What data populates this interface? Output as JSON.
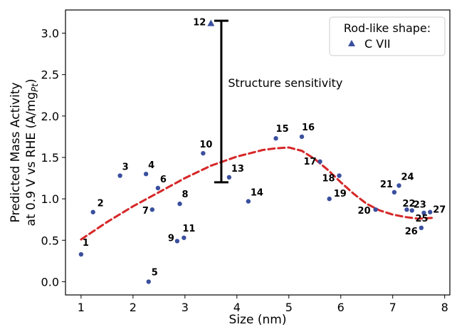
{
  "chart_data": {
    "type": "scatter",
    "xlabel": "Size (nm)",
    "ylabel_line1": "Predicted Mass Activity",
    "ylabel_line2_prefix": "at 0.9 V vs RHE (A/mg",
    "ylabel_line2_sub": "Pt",
    "ylabel_line2_suffix": ")",
    "xlim": [
      0.7,
      8.1
    ],
    "ylim": [
      -0.16,
      3.28
    ],
    "xticks": [
      1,
      2,
      3,
      4,
      5,
      6,
      7,
      8
    ],
    "yticks": [
      0.0,
      0.5,
      1.0,
      1.5,
      2.0,
      2.5,
      3.0
    ],
    "ytick_labels": [
      "0.0",
      "0.5",
      "1.0",
      "1.5",
      "2.0",
      "2.5",
      "3.0"
    ],
    "points": [
      {
        "label": "1",
        "x": 1.0,
        "y": 0.33
      },
      {
        "label": "2",
        "x": 1.23,
        "y": 0.84
      },
      {
        "label": "3",
        "x": 1.75,
        "y": 1.28
      },
      {
        "label": "4",
        "x": 2.25,
        "y": 1.3
      },
      {
        "label": "5",
        "x": 2.3,
        "y": 0.0
      },
      {
        "label": "6",
        "x": 2.48,
        "y": 1.13
      },
      {
        "label": "7",
        "x": 2.37,
        "y": 0.87
      },
      {
        "label": "8",
        "x": 2.9,
        "y": 0.94
      },
      {
        "label": "9",
        "x": 2.85,
        "y": 0.49
      },
      {
        "label": "10",
        "x": 3.35,
        "y": 1.55
      },
      {
        "label": "11",
        "x": 2.98,
        "y": 0.53
      },
      {
        "label": "13",
        "x": 3.85,
        "y": 1.26
      },
      {
        "label": "14",
        "x": 4.22,
        "y": 0.97
      },
      {
        "label": "15",
        "x": 4.75,
        "y": 1.73
      },
      {
        "label": "16",
        "x": 5.25,
        "y": 1.75
      },
      {
        "label": "17",
        "x": 5.6,
        "y": 1.45
      },
      {
        "label": "18",
        "x": 5.97,
        "y": 1.28
      },
      {
        "label": "19",
        "x": 5.78,
        "y": 1.0
      },
      {
        "label": "20",
        "x": 6.67,
        "y": 0.87
      },
      {
        "label": "21",
        "x": 7.03,
        "y": 1.08
      },
      {
        "label": "24",
        "x": 7.12,
        "y": 1.16
      },
      {
        "label": "22",
        "x": 7.27,
        "y": 0.87
      },
      {
        "label": "23",
        "x": 7.37,
        "y": 0.86
      },
      {
        "label": "25",
        "x": 7.6,
        "y": 0.83
      },
      {
        "label": "26",
        "x": 7.55,
        "y": 0.65
      },
      {
        "label": "27",
        "x": 7.72,
        "y": 0.84
      }
    ],
    "special_point": {
      "label": "12",
      "x": 3.5,
      "y": 3.12
    },
    "trend_line": {
      "x": [
        1.0,
        1.5,
        2.0,
        2.5,
        3.0,
        3.5,
        4.0,
        4.5,
        4.75,
        5.0,
        5.25,
        5.5,
        5.75,
        6.0,
        6.25,
        6.5,
        6.75,
        7.0,
        7.25,
        7.5,
        7.75
      ],
      "y": [
        0.51,
        0.72,
        0.91,
        1.08,
        1.25,
        1.4,
        1.51,
        1.59,
        1.61,
        1.62,
        1.58,
        1.48,
        1.35,
        1.2,
        1.06,
        0.94,
        0.86,
        0.81,
        0.78,
        0.76,
        0.77
      ]
    },
    "range_bar": {
      "x": 3.7,
      "y_low": 1.2,
      "y_high": 3.15
    },
    "annotation": {
      "text": "Structure sensitivity",
      "x": 3.83,
      "y": 2.35
    },
    "legend": {
      "title": "Rod-like shape:",
      "entry": "C VII",
      "placement": "top-right"
    },
    "colors": {
      "points": "#3a4f9e",
      "trend": "#d62728",
      "bar": "#000000"
    }
  }
}
